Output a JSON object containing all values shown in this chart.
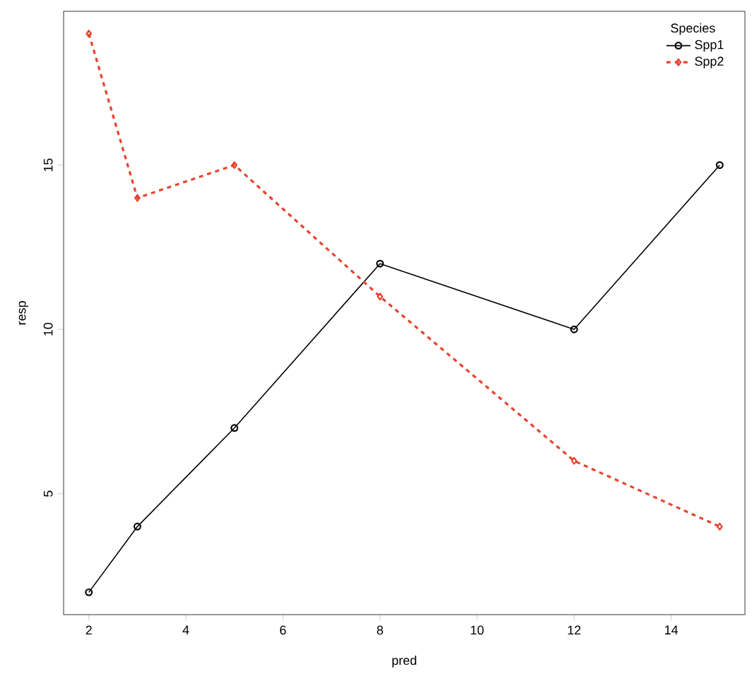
{
  "chart_data": {
    "type": "line",
    "xlabel": "pred",
    "ylabel": "resp",
    "legend_title": "Species",
    "x": [
      2,
      3,
      5,
      8,
      12,
      15
    ],
    "series": [
      {
        "name": "Spp1",
        "color": "#000000",
        "values": [
          2,
          4,
          7,
          12,
          10,
          15
        ],
        "marker": "circle",
        "line_style": "solid"
      },
      {
        "name": "Spp2",
        "color": "#e8432e",
        "values": [
          19,
          14,
          15,
          11,
          6,
          4
        ],
        "marker": "diamond",
        "line_style": "dashed"
      }
    ],
    "xlim": [
      1.48,
      15.52
    ],
    "ylim": [
      1.32,
      19.68
    ],
    "xticks": [
      2,
      4,
      6,
      8,
      10,
      12,
      14
    ],
    "yticks": [
      5,
      10,
      15
    ],
    "grid": false,
    "legend": "top right"
  }
}
